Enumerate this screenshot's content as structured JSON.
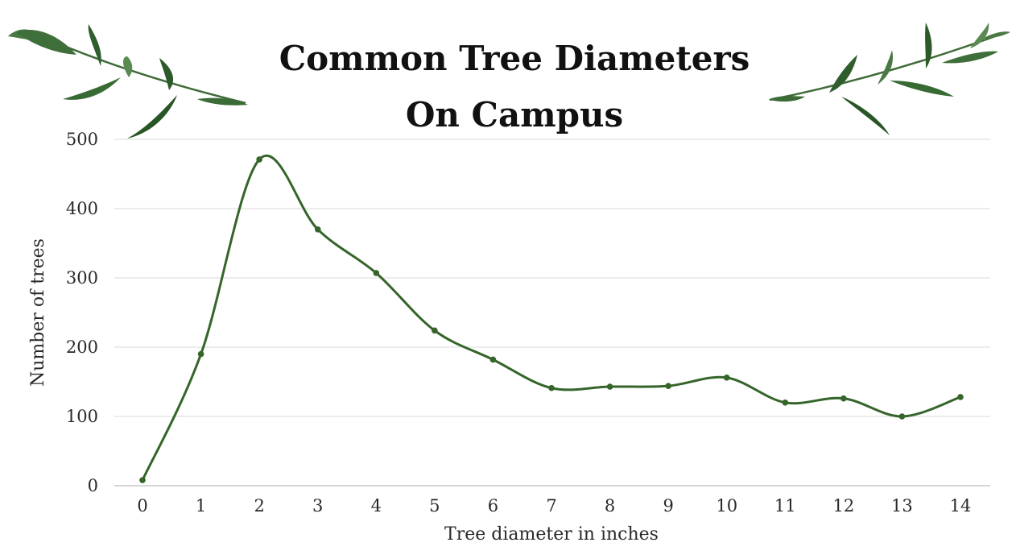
{
  "chart_data": {
    "type": "line",
    "title_lines": [
      "Common Tree Diameters",
      "On Campus"
    ],
    "xlabel": "Tree diameter in inches",
    "ylabel": "Number of trees",
    "x": [
      0,
      1,
      2,
      3,
      4,
      5,
      6,
      7,
      8,
      9,
      10,
      11,
      12,
      13,
      14
    ],
    "series": [
      {
        "values": [
          8,
          190,
          471,
          370,
          307,
          224,
          182,
          141,
          143,
          144,
          156,
          120,
          126,
          100,
          128
        ]
      }
    ],
    "x_ticks": [
      "0",
      "1",
      "2",
      "3",
      "4",
      "5",
      "6",
      "7",
      "8",
      "9",
      "10",
      "11",
      "12",
      "13",
      "14"
    ],
    "y_ticks": [
      "0",
      "100",
      "200",
      "300",
      "400",
      "500"
    ],
    "ylim": [
      0,
      500
    ],
    "grid": true,
    "smooth": true,
    "line_color": "#35652a",
    "decorations": [
      "leaf-branch-left-icon",
      "leaf-branch-right-icon"
    ]
  }
}
